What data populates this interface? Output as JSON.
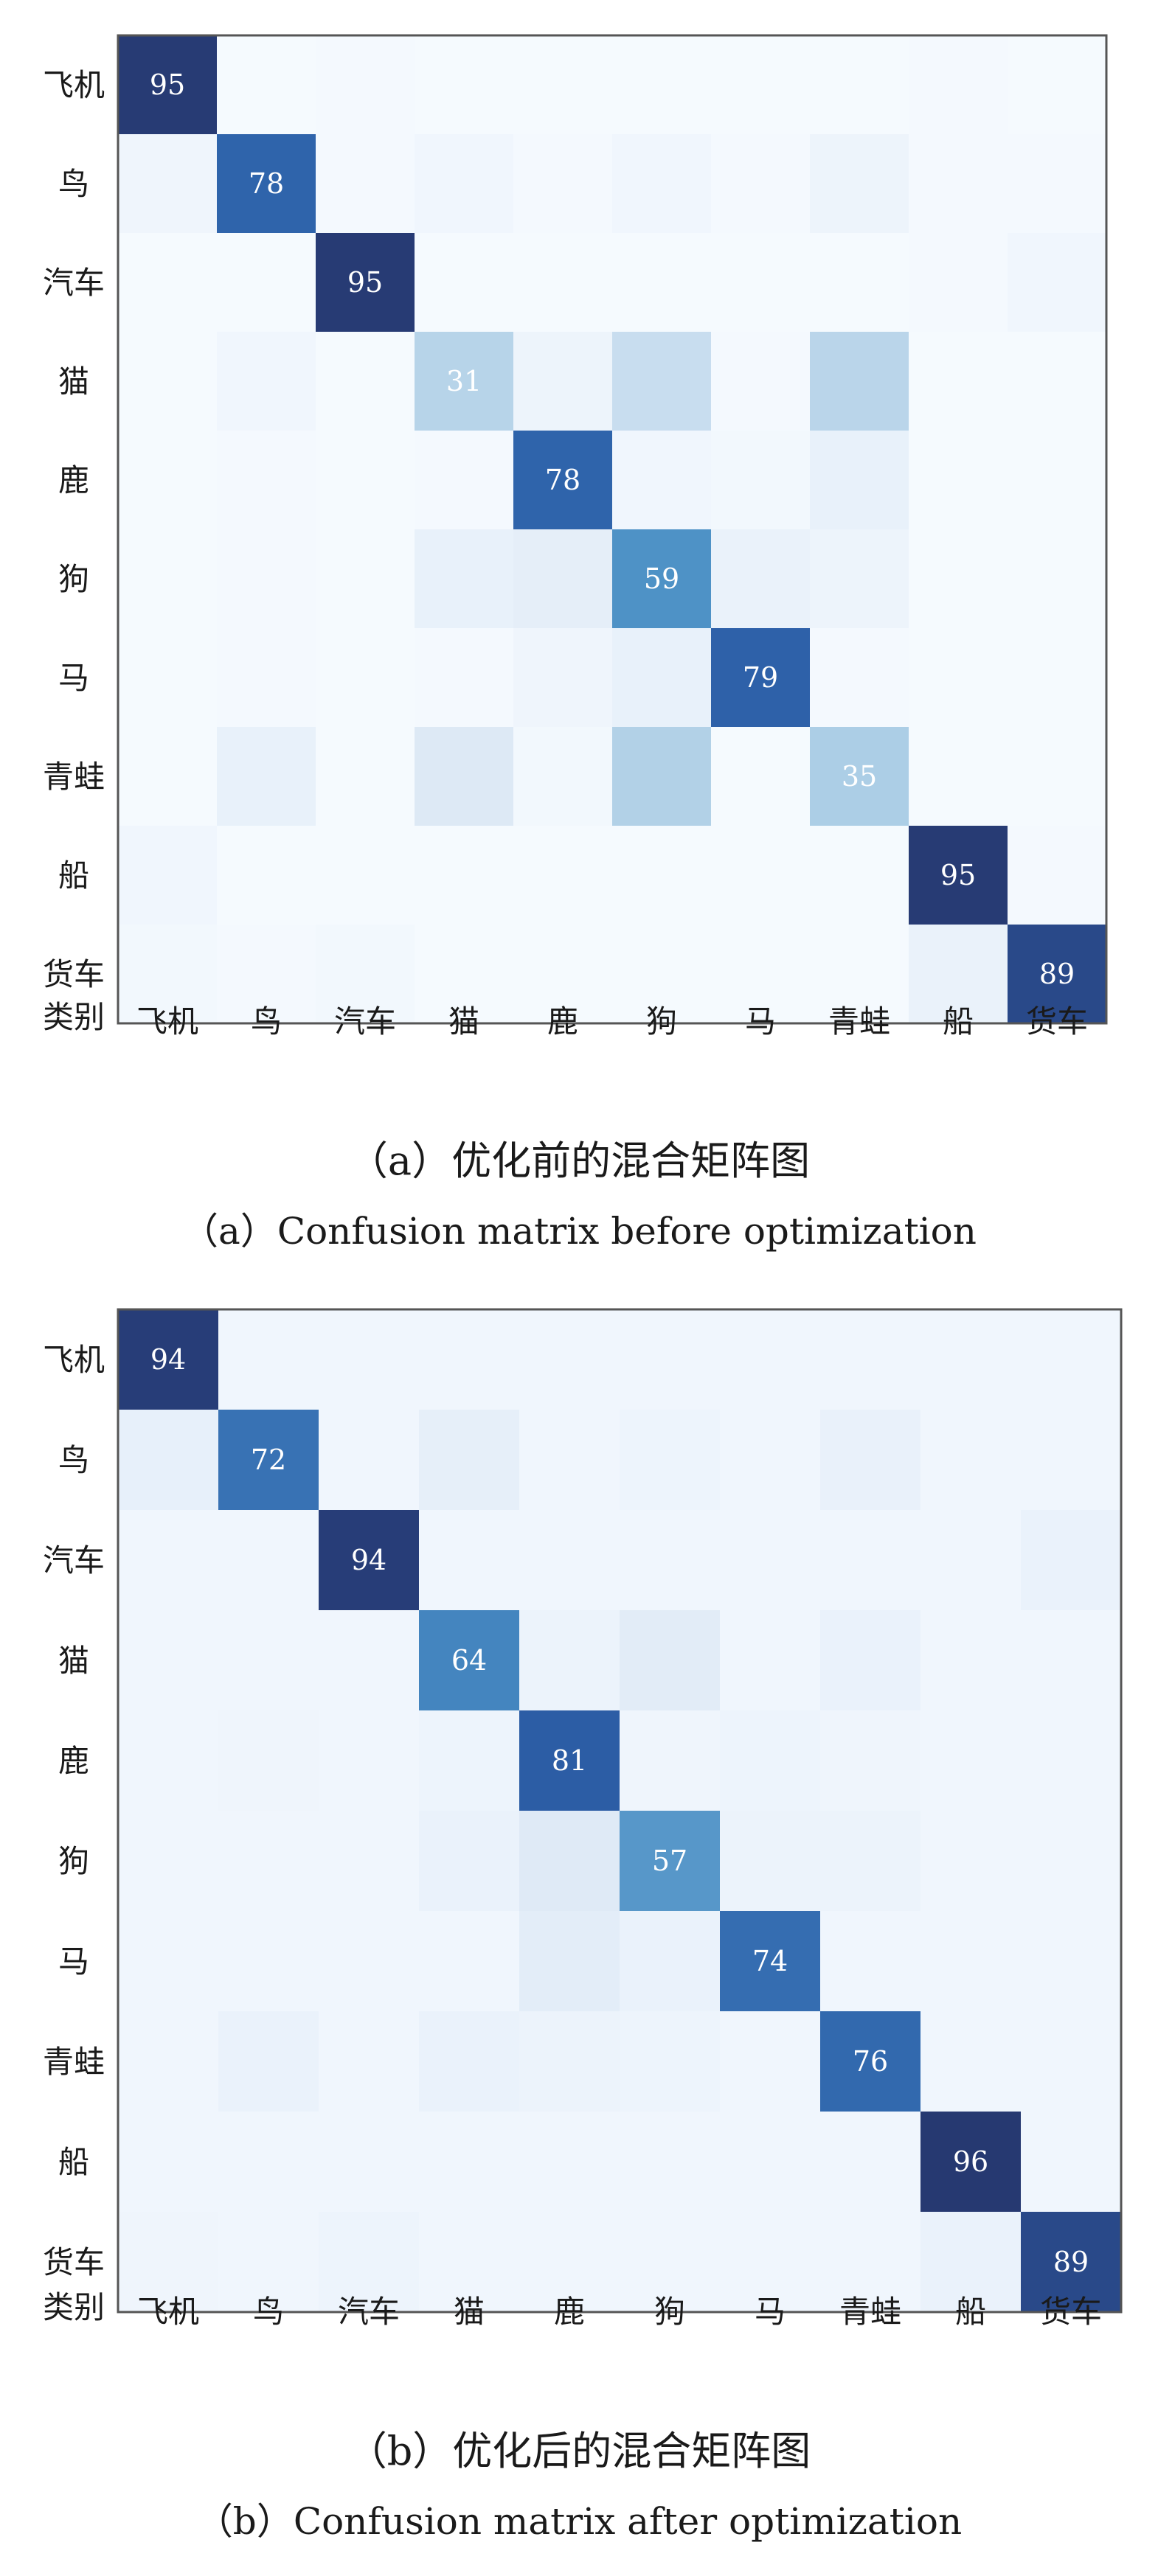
{
  "chart_data": [
    {
      "type": "heatmap",
      "categories": [
        "飞机",
        "鸟",
        "汽车",
        "猫",
        "鹿",
        "狗",
        "马",
        "青蛙",
        "船",
        "货车"
      ],
      "corner_label": "类别",
      "diagonal_values": [
        95,
        78,
        95,
        31,
        78,
        59,
        79,
        35,
        95,
        89
      ],
      "intensity": [
        [
          95,
          1,
          2,
          1,
          1,
          1,
          1,
          1,
          2,
          1
        ],
        [
          5,
          78,
          2,
          4,
          2,
          4,
          2,
          6,
          2,
          2
        ],
        [
          1,
          1,
          95,
          1,
          1,
          1,
          1,
          1,
          2,
          4
        ],
        [
          1,
          4,
          1,
          31,
          6,
          25,
          2,
          30,
          1,
          1
        ],
        [
          1,
          2,
          1,
          2,
          78,
          4,
          3,
          9,
          1,
          1
        ],
        [
          1,
          2,
          1,
          9,
          11,
          59,
          8,
          6,
          1,
          1
        ],
        [
          1,
          2,
          1,
          2,
          5,
          9,
          79,
          2,
          1,
          1
        ],
        [
          1,
          9,
          1,
          16,
          3,
          33,
          1,
          35,
          1,
          1
        ],
        [
          4,
          1,
          1,
          1,
          1,
          1,
          1,
          1,
          95,
          2
        ],
        [
          3,
          2,
          3,
          1,
          1,
          1,
          1,
          1,
          8,
          89
        ]
      ],
      "color_low": "#f7fbff",
      "color_high": "#252f63",
      "caption_zh": "（a）优化前的混合矩阵图",
      "caption_en": "（a）Confusion matrix before optimization"
    },
    {
      "type": "heatmap",
      "categories": [
        "飞机",
        "鸟",
        "汽车",
        "猫",
        "鹿",
        "狗",
        "马",
        "青蛙",
        "船",
        "货车"
      ],
      "corner_label": "类别",
      "diagonal_values": [
        94,
        72,
        94,
        64,
        81,
        57,
        74,
        76,
        96,
        89
      ],
      "intensity": [
        [
          94,
          2,
          2,
          2,
          2,
          2,
          2,
          2,
          2,
          2
        ],
        [
          8,
          72,
          2,
          9,
          2,
          4,
          2,
          7,
          2,
          2
        ],
        [
          2,
          2,
          94,
          2,
          2,
          2,
          2,
          2,
          2,
          6
        ],
        [
          2,
          2,
          2,
          64,
          5,
          12,
          2,
          6,
          2,
          2
        ],
        [
          2,
          3,
          2,
          4,
          81,
          3,
          4,
          3,
          2,
          2
        ],
        [
          2,
          2,
          2,
          6,
          14,
          57,
          5,
          5,
          2,
          2
        ],
        [
          2,
          2,
          2,
          2,
          11,
          6,
          74,
          2,
          2,
          2
        ],
        [
          2,
          6,
          2,
          6,
          5,
          4,
          2,
          76,
          2,
          2
        ],
        [
          2,
          2,
          2,
          2,
          2,
          2,
          2,
          2,
          96,
          2
        ],
        [
          3,
          2,
          4,
          2,
          2,
          2,
          2,
          2,
          6,
          89
        ]
      ],
      "color_low": "#f3f8fe",
      "color_high": "#252f63",
      "caption_zh": "（b）优化后的混合矩阵图",
      "caption_en": "（b）Confusion matrix after optimization"
    }
  ]
}
